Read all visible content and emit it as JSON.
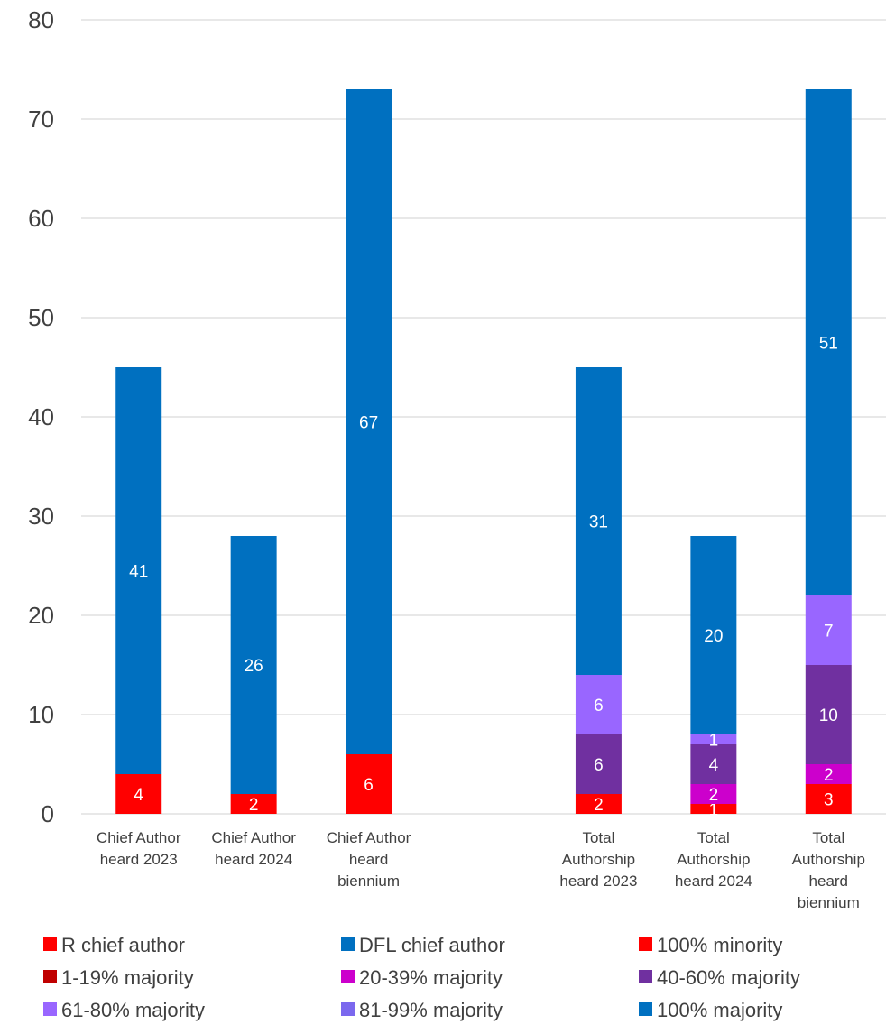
{
  "chart_data": {
    "type": "bar",
    "stacked": true,
    "ylim": [
      0,
      80
    ],
    "yticks": [
      0,
      10,
      20,
      30,
      40,
      50,
      60,
      70,
      80
    ],
    "grid": true,
    "legend_position": "bottom",
    "categories": [
      [
        "Chief Author",
        "heard 2023"
      ],
      [
        "Chief Author",
        "heard 2024"
      ],
      [
        "Chief Author",
        "heard",
        "biennium"
      ],
      [],
      [
        "Total",
        "Authorship",
        "heard 2023"
      ],
      [
        "Total",
        "Authorship",
        "heard 2024"
      ],
      [
        "Total",
        "Authorship",
        "heard",
        "biennium"
      ]
    ],
    "series": [
      {
        "name": "R chief author",
        "color": "#ff0000",
        "values": [
          4,
          2,
          6,
          0,
          0,
          0,
          0
        ]
      },
      {
        "name": "DFL chief author",
        "color": "#0070c0",
        "values": [
          41,
          26,
          67,
          0,
          0,
          0,
          0
        ]
      },
      {
        "name": "100% minority",
        "color": "#ff0000",
        "values": [
          0,
          0,
          0,
          0,
          2,
          1,
          3
        ]
      },
      {
        "name": "1-19% majority",
        "color": "#c00000",
        "values": [
          0,
          0,
          0,
          0,
          0,
          0,
          0
        ]
      },
      {
        "name": "20-39% majority",
        "color": "#cc00cc",
        "values": [
          0,
          0,
          0,
          0,
          0,
          2,
          2
        ]
      },
      {
        "name": "40-60% majority",
        "color": "#7030a0",
        "values": [
          0,
          0,
          0,
          0,
          6,
          4,
          10
        ]
      },
      {
        "name": "61-80% majority",
        "color": "#9966ff",
        "values": [
          0,
          0,
          0,
          0,
          6,
          1,
          7
        ]
      },
      {
        "name": "81-99% majority",
        "color": "#7b68ee",
        "values": [
          0,
          0,
          0,
          0,
          0,
          0,
          0
        ]
      },
      {
        "name": "100% majority",
        "color": "#0070c0",
        "values": [
          0,
          0,
          0,
          0,
          31,
          20,
          51
        ]
      }
    ]
  }
}
